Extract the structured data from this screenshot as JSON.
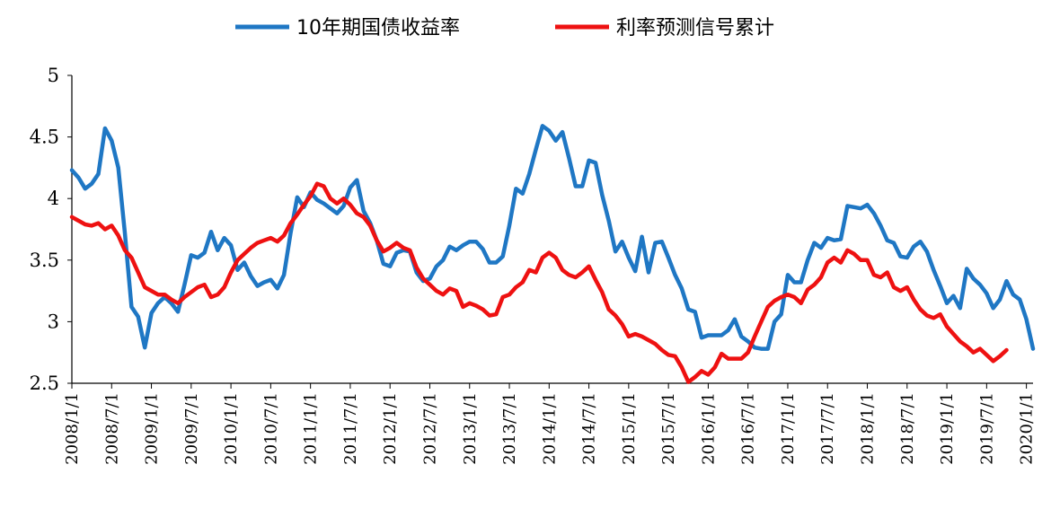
{
  "chart_data": {
    "type": "line",
    "title": "",
    "xlabel": "",
    "ylabel": "",
    "ylim": [
      2.5,
      5
    ],
    "yticks": [
      "2.5",
      "3",
      "3.5",
      "4",
      "4.5",
      "5"
    ],
    "x_tick_labels": [
      "2008/1/1",
      "2008/7/1",
      "2009/1/1",
      "2009/7/1",
      "2010/1/1",
      "2010/7/1",
      "2011/1/1",
      "2011/7/1",
      "2012/1/1",
      "2012/7/1",
      "2013/1/1",
      "2013/7/1",
      "2014/1/1",
      "2014/7/1",
      "2015/1/1",
      "2015/7/1",
      "2016/1/1",
      "2016/7/1",
      "2017/1/1",
      "2017/7/1",
      "2018/1/1",
      "2018/7/1",
      "2019/1/1",
      "2019/7/1",
      "2020/1/1"
    ],
    "legend_position": "top",
    "grid": false,
    "series": [
      {
        "name": "10年期国债收益率",
        "color": "#1f77c4",
        "values": [
          4.23,
          4.17,
          4.08,
          4.12,
          4.2,
          4.57,
          4.47,
          4.25,
          3.72,
          3.12,
          3.04,
          2.79,
          3.07,
          3.15,
          3.2,
          3.15,
          3.08,
          3.3,
          3.54,
          3.52,
          3.56,
          3.73,
          3.58,
          3.68,
          3.62,
          3.42,
          3.48,
          3.37,
          3.29,
          3.32,
          3.34,
          3.27,
          3.38,
          3.72,
          4.01,
          3.93,
          4.05,
          3.99,
          3.96,
          3.92,
          3.88,
          3.94,
          4.09,
          4.15,
          3.9,
          3.8,
          3.66,
          3.47,
          3.45,
          3.56,
          3.58,
          3.57,
          3.4,
          3.33,
          3.35,
          3.45,
          3.5,
          3.61,
          3.58,
          3.62,
          3.65,
          3.65,
          3.59,
          3.48,
          3.48,
          3.53,
          3.78,
          4.08,
          4.04,
          4.2,
          4.4,
          4.59,
          4.55,
          4.47,
          4.54,
          4.33,
          4.1,
          4.1,
          4.31,
          4.29,
          4.03,
          3.82,
          3.57,
          3.65,
          3.52,
          3.41,
          3.69,
          3.4,
          3.64,
          3.65,
          3.52,
          3.38,
          3.27,
          3.1,
          3.08,
          2.87,
          2.89,
          2.89,
          2.89,
          2.93,
          3.02,
          2.88,
          2.84,
          2.79,
          2.78,
          2.78,
          3.0,
          3.06,
          3.38,
          3.32,
          3.32,
          3.5,
          3.64,
          3.6,
          3.68,
          3.66,
          3.67,
          3.94,
          3.93,
          3.92,
          3.95,
          3.88,
          3.78,
          3.66,
          3.64,
          3.53,
          3.52,
          3.61,
          3.65,
          3.57,
          3.42,
          3.29,
          3.15,
          3.21,
          3.11,
          3.43,
          3.35,
          3.3,
          3.23,
          3.11,
          3.18,
          3.33,
          3.22,
          3.18,
          3.02,
          2.78
        ]
      },
      {
        "name": "利率预测信号累计",
        "color": "#ee1111",
        "values": [
          3.85,
          3.82,
          3.79,
          3.78,
          3.8,
          3.75,
          3.78,
          3.7,
          3.58,
          3.52,
          3.4,
          3.28,
          3.25,
          3.22,
          3.22,
          3.18,
          3.15,
          3.2,
          3.24,
          3.28,
          3.3,
          3.2,
          3.22,
          3.28,
          3.4,
          3.5,
          3.55,
          3.6,
          3.64,
          3.66,
          3.68,
          3.65,
          3.7,
          3.8,
          3.87,
          3.95,
          4.02,
          4.12,
          4.1,
          4.0,
          3.96,
          4.0,
          3.95,
          3.88,
          3.85,
          3.78,
          3.66,
          3.57,
          3.6,
          3.64,
          3.6,
          3.58,
          3.44,
          3.35,
          3.3,
          3.25,
          3.22,
          3.27,
          3.25,
          3.12,
          3.15,
          3.13,
          3.1,
          3.05,
          3.06,
          3.2,
          3.22,
          3.28,
          3.32,
          3.42,
          3.4,
          3.52,
          3.56,
          3.52,
          3.42,
          3.38,
          3.36,
          3.4,
          3.45,
          3.34,
          3.24,
          3.1,
          3.05,
          2.98,
          2.88,
          2.9,
          2.88,
          2.85,
          2.82,
          2.77,
          2.73,
          2.72,
          2.63,
          2.51,
          2.55,
          2.6,
          2.57,
          2.63,
          2.74,
          2.7,
          2.7,
          2.7,
          2.75,
          2.88,
          3.0,
          3.12,
          3.17,
          3.2,
          3.22,
          3.2,
          3.15,
          3.26,
          3.3,
          3.36,
          3.48,
          3.52,
          3.48,
          3.58,
          3.55,
          3.5,
          3.5,
          3.38,
          3.36,
          3.4,
          3.28,
          3.25,
          3.28,
          3.18,
          3.1,
          3.05,
          3.03,
          3.06,
          2.96,
          2.9,
          2.84,
          2.8,
          2.75,
          2.78,
          2.73,
          2.68,
          2.72,
          2.77
        ]
      }
    ]
  }
}
